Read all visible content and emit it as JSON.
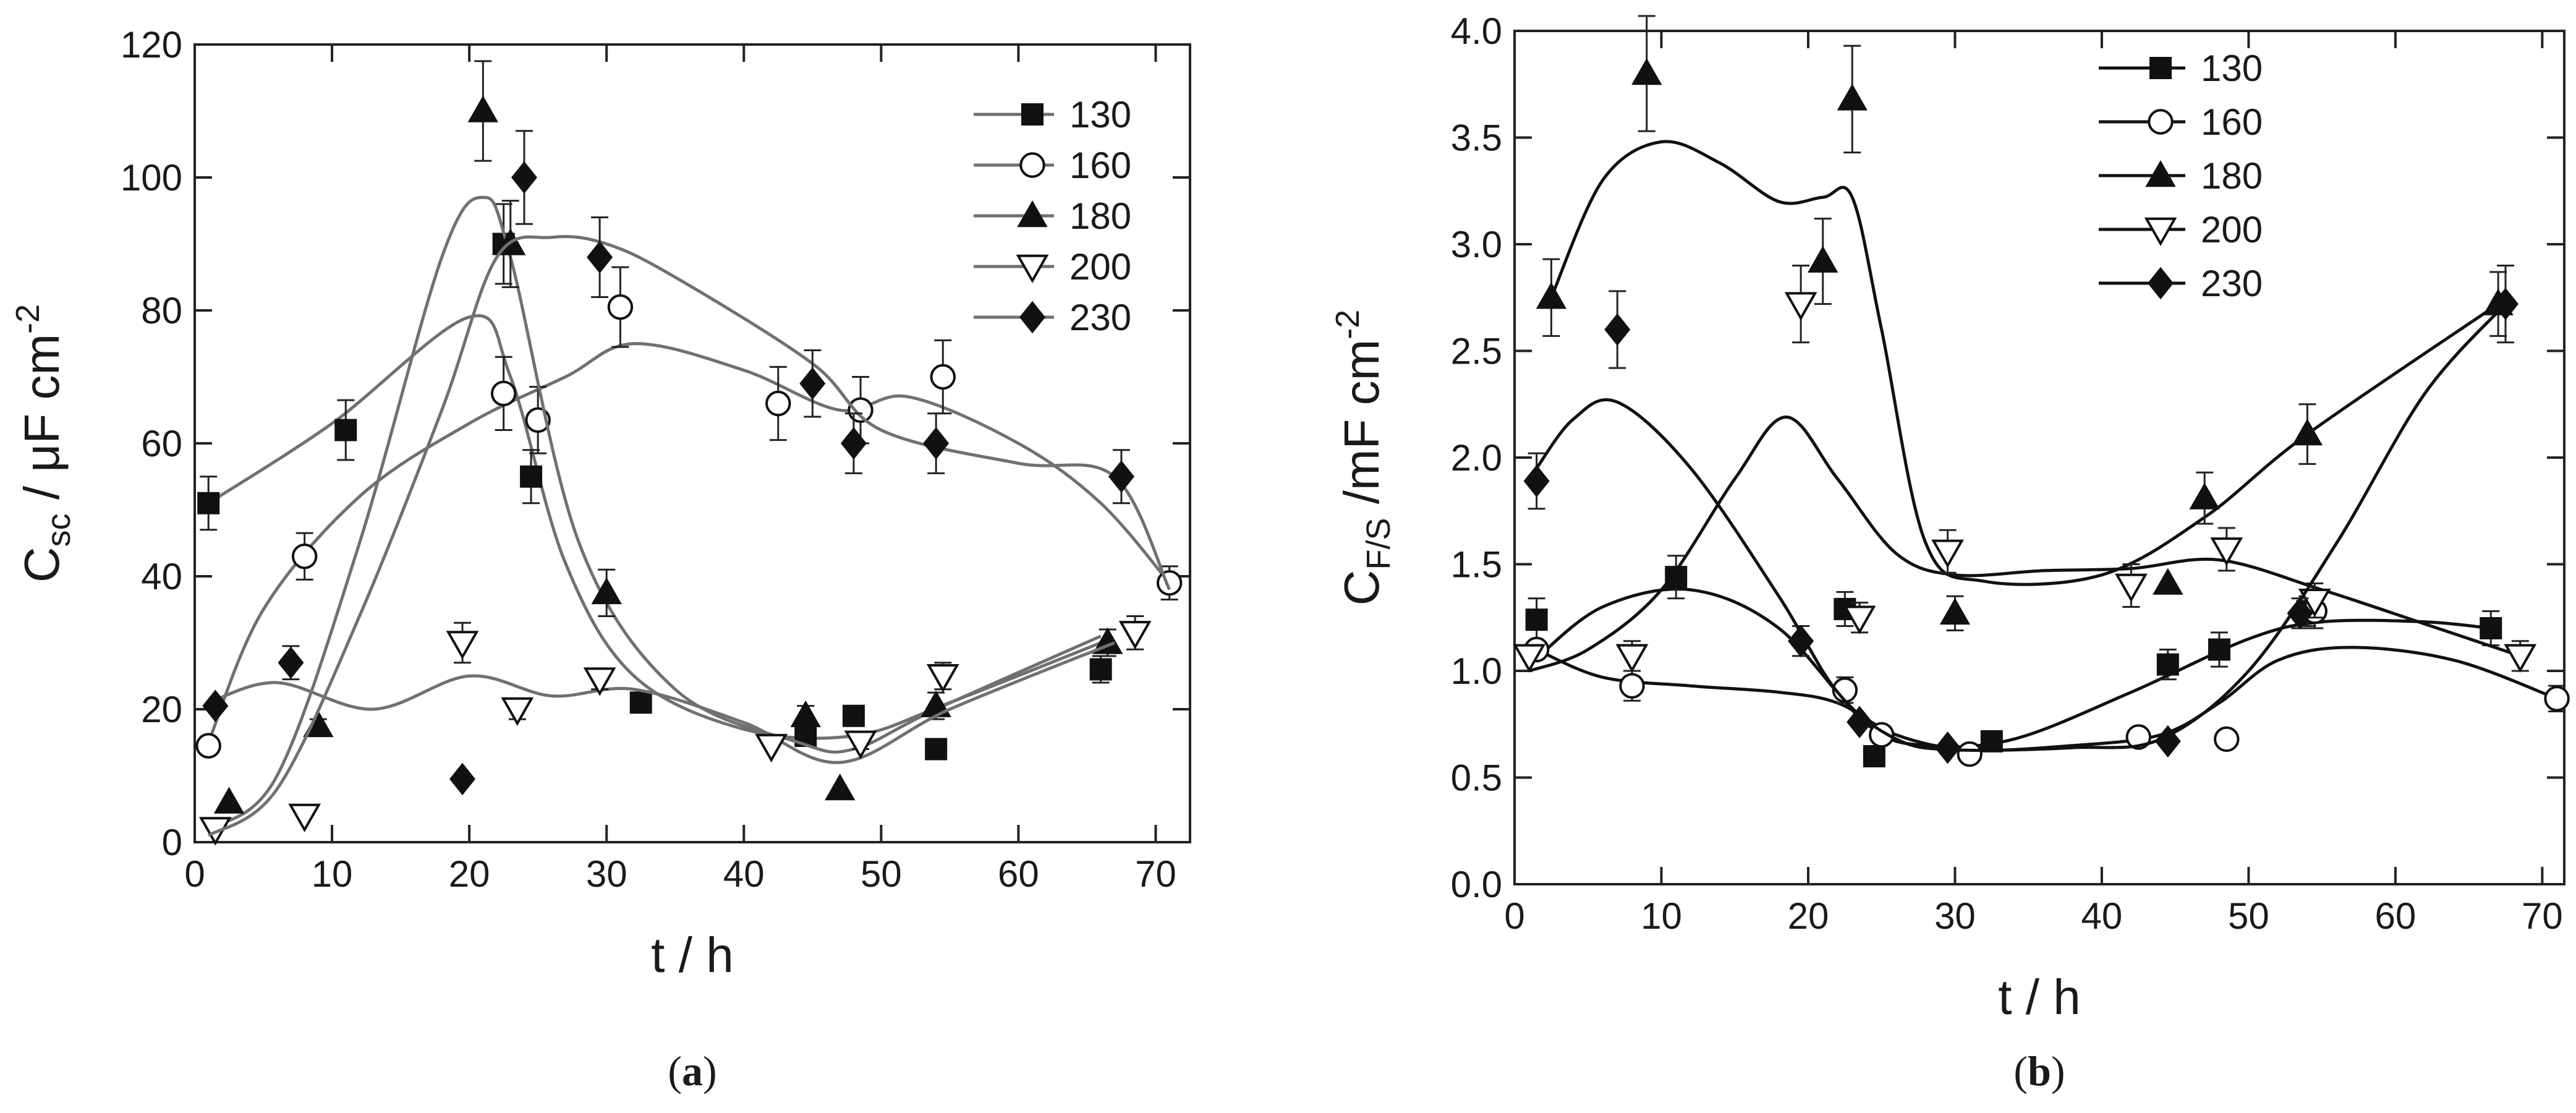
{
  "chart_data": [
    {
      "type": "scatter",
      "panel_label": "(a)",
      "xlabel": "t / h",
      "ylabel_main": "C",
      "ylabel_sub": "sc",
      "ylabel_rest": " / μF cm",
      "ylabel_sup": "-2",
      "xlim": [
        0,
        72.5
      ],
      "ylim": [
        0,
        120
      ],
      "xticks": [
        0,
        10,
        20,
        30,
        40,
        50,
        60,
        70
      ],
      "yticks": [
        0,
        20,
        40,
        60,
        80,
        100,
        120
      ],
      "ytick_labels": [
        "0",
        "20",
        "40",
        "60",
        "80",
        "100",
        "120"
      ],
      "line_color": "#707070",
      "legend_position": "top-right",
      "series": [
        {
          "name": "130",
          "marker": "square",
          "x": [
            1,
            11,
            22.5,
            24.5,
            32.5,
            44.5,
            48,
            54,
            66
          ],
          "y": [
            51,
            62,
            90,
            55,
            21,
            16,
            19,
            14,
            26
          ],
          "err": [
            4,
            4.5,
            6,
            4,
            0,
            1.5,
            1.5,
            0,
            2
          ],
          "curve_x": [
            1,
            10,
            20,
            23,
            27,
            32,
            40,
            48,
            55,
            66
          ],
          "curve_y": [
            51,
            63,
            79,
            70,
            42,
            25,
            17,
            16,
            21,
            30
          ]
        },
        {
          "name": "160",
          "marker": "circle",
          "x": [
            1,
            8,
            22.5,
            25,
            31,
            42.5,
            48.5,
            54.5,
            71
          ],
          "y": [
            14.5,
            43,
            67.5,
            63.5,
            80.5,
            66,
            65,
            70,
            39
          ],
          "err": [
            0,
            3.5,
            5.5,
            5,
            6,
            5.5,
            5,
            5.5,
            2.5
          ],
          "curve_x": [
            1,
            5,
            12,
            20,
            27,
            32,
            40,
            47,
            52,
            60,
            66,
            71
          ],
          "curve_y": [
            15,
            35,
            52,
            63,
            70,
            75,
            71,
            65,
            67,
            60,
            51,
            39
          ]
        },
        {
          "name": "180",
          "marker": "triangle-up",
          "x": [
            2.5,
            9,
            21,
            23,
            30,
            44.5,
            47,
            54,
            66.5
          ],
          "y": [
            6,
            17.5,
            110,
            90,
            37.5,
            19,
            8,
            20.5,
            30
          ],
          "err": [
            0,
            1,
            7.5,
            6.5,
            3.5,
            1.5,
            0,
            2,
            2
          ],
          "curve_x": [
            1,
            6,
            12,
            18,
            21,
            23,
            28,
            35,
            44,
            48,
            54,
            66
          ],
          "curve_y": [
            2,
            10,
            45,
            88,
            97,
            88,
            45,
            23,
            15,
            14,
            20,
            31
          ]
        },
        {
          "name": "200",
          "marker": "triangle-down",
          "x": [
            1.5,
            8,
            19.5,
            23.5,
            29.5,
            42,
            48.5,
            54.5,
            68.5
          ],
          "y": [
            2,
            4,
            30,
            20,
            24.5,
            14.5,
            15,
            25,
            31.5
          ],
          "err": [
            0,
            0,
            3,
            1.5,
            1.5,
            0,
            1,
            2,
            2.5
          ],
          "curve_x": [
            1,
            6,
            13,
            20,
            26,
            32,
            40,
            47,
            55,
            67
          ],
          "curve_y": [
            21,
            24,
            20,
            25,
            22,
            23,
            18,
            12,
            20,
            30
          ]
        },
        {
          "name": "230",
          "marker": "diamond",
          "x": [
            1.5,
            7,
            19.5,
            24,
            29.5,
            45,
            48,
            54,
            67.5
          ],
          "y": [
            20.5,
            27,
            9.5,
            100,
            88,
            69,
            60,
            60,
            55
          ],
          "err": [
            0,
            2.5,
            0,
            7,
            6,
            5,
            4.5,
            4.5,
            4
          ],
          "curve_x": [
            1,
            6,
            12,
            18,
            22,
            26,
            30,
            35,
            45,
            50,
            60,
            67,
            71
          ],
          "curve_y": [
            1,
            8,
            34,
            65,
            88,
            91,
            90,
            85,
            72,
            62,
            57,
            55,
            38
          ]
        }
      ]
    },
    {
      "type": "scatter",
      "panel_label": "(b)",
      "xlabel": "t / h",
      "ylabel_main": "C",
      "ylabel_sub": "F/S",
      "ylabel_rest": " /mF cm",
      "ylabel_sup": "-2",
      "xlim": [
        0,
        71.5
      ],
      "ylim": [
        0,
        4.0
      ],
      "xticks": [
        0,
        10,
        20,
        30,
        40,
        50,
        60,
        70
      ],
      "yticks": [
        0,
        0.5,
        1.0,
        1.5,
        2.0,
        2.5,
        3.0,
        3.5,
        4.0
      ],
      "ytick_labels": [
        "0.0",
        "0.5",
        "1.0",
        "1.5",
        "2.0",
        "2.5",
        "3.0",
        "3.5",
        "4.0"
      ],
      "line_color": "#111111",
      "legend_position": "top-center",
      "series": [
        {
          "name": "130",
          "marker": "square",
          "x": [
            1.5,
            11,
            22.5,
            24.5,
            32.5,
            44.5,
            48,
            54,
            66.5
          ],
          "y": [
            1.24,
            1.44,
            1.29,
            0.6,
            0.67,
            1.03,
            1.1,
            1.28,
            1.2
          ],
          "err": [
            0.1,
            0.1,
            0.08,
            0,
            0,
            0.07,
            0.08,
            0.07,
            0.08
          ],
          "curve_x": [
            1.5,
            6,
            12,
            18,
            24,
            28,
            34,
            42,
            50,
            55,
            62,
            66.5
          ],
          "curve_y": [
            1.06,
            1.3,
            1.38,
            1.2,
            0.75,
            0.65,
            0.68,
            0.9,
            1.15,
            1.23,
            1.23,
            1.2
          ]
        },
        {
          "name": "160",
          "marker": "circle",
          "x": [
            1.5,
            8,
            22.5,
            25,
            31,
            42.5,
            48.5,
            54.5,
            71
          ],
          "y": [
            1.1,
            0.93,
            0.91,
            0.7,
            0.61,
            0.69,
            0.68,
            1.28,
            0.87
          ],
          "err": [
            0,
            0.07,
            0.06,
            0,
            0,
            0,
            0,
            0.08,
            0.06
          ],
          "curve_x": [
            1.5,
            6,
            12,
            18,
            22,
            26,
            31,
            38,
            44,
            48,
            52,
            57,
            64,
            71
          ],
          "curve_y": [
            1.1,
            0.97,
            0.93,
            0.9,
            0.85,
            0.7,
            0.63,
            0.65,
            0.7,
            0.85,
            1.05,
            1.11,
            1.05,
            0.87
          ]
        },
        {
          "name": "180",
          "marker": "triangle-up",
          "x": [
            2.5,
            9,
            21,
            23,
            30,
            44.5,
            47,
            54,
            67
          ],
          "y": [
            2.75,
            3.8,
            2.92,
            3.68,
            1.27,
            1.41,
            1.81,
            2.11,
            2.72
          ],
          "err": [
            0.18,
            0.27,
            0.2,
            0.25,
            0.08,
            0,
            0.12,
            0.14,
            0.15
          ],
          "curve_x": [
            2.5,
            6,
            10,
            14,
            18,
            21,
            23,
            25,
            28,
            32,
            40,
            47,
            54,
            67
          ],
          "curve_y": [
            2.75,
            3.3,
            3.48,
            3.38,
            3.2,
            3.22,
            3.22,
            2.6,
            1.6,
            1.42,
            1.45,
            1.72,
            2.11,
            2.72
          ]
        },
        {
          "name": "200",
          "marker": "triangle-down",
          "x": [
            1,
            8,
            19.5,
            23.5,
            29.5,
            42,
            48.5,
            54.5,
            68.5
          ],
          "y": [
            1.07,
            1.07,
            2.72,
            1.25,
            1.56,
            1.4,
            1.57,
            1.33,
            1.07
          ],
          "err": [
            0,
            0.07,
            0.18,
            0.07,
            0.1,
            0.1,
            0.1,
            0.08,
            0.07
          ],
          "curve_x": [
            1,
            5,
            10,
            15,
            18.5,
            22,
            26,
            30,
            36,
            42,
            48,
            55,
            62,
            68.5
          ],
          "curve_y": [
            1.0,
            1.1,
            1.38,
            1.9,
            2.19,
            1.9,
            1.55,
            1.45,
            1.47,
            1.48,
            1.52,
            1.38,
            1.22,
            1.07
          ]
        },
        {
          "name": "230",
          "marker": "diamond",
          "x": [
            1.5,
            7,
            19.5,
            23.5,
            29.5,
            44.5,
            53.5,
            67.5
          ],
          "y": [
            1.89,
            2.6,
            1.14,
            0.76,
            0.64,
            0.67,
            1.27,
            2.72
          ],
          "err": [
            0.13,
            0.18,
            0.07,
            0,
            0,
            0,
            0.07,
            0.18
          ],
          "curve_x": [
            1.5,
            4,
            7,
            12,
            18,
            22,
            26,
            30,
            38,
            44,
            50,
            56,
            62,
            67.5
          ],
          "curve_y": [
            1.95,
            2.18,
            2.26,
            1.95,
            1.35,
            0.9,
            0.68,
            0.63,
            0.64,
            0.68,
            1.0,
            1.6,
            2.3,
            2.72
          ]
        }
      ]
    }
  ]
}
